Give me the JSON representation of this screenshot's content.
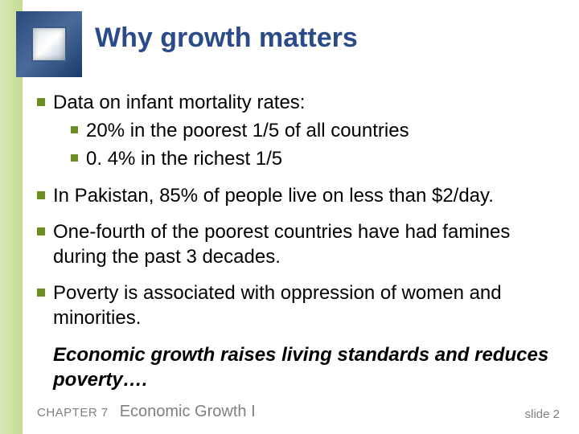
{
  "title": "Why growth matters",
  "bullets": [
    {
      "text": "Data on infant mortality rates:",
      "subs": [
        "20% in the poorest 1/5 of all countries",
        "0. 4% in the richest 1/5"
      ]
    },
    {
      "text": "In Pakistan, 85% of people live on less than $2/day."
    },
    {
      "text": "One-fourth of the poorest countries have had famines during the past 3 decades."
    },
    {
      "text": "Poverty is associated with oppression of women and minorities."
    }
  ],
  "emphasis": "Economic growth raises living standards and reduces poverty….",
  "footer": {
    "chapter_label": "CHAPTER 7",
    "chapter_title": "Economic Growth I",
    "slide": "slide 2"
  },
  "colors": {
    "title_color": "#2a4a8a",
    "bullet_color": "#6b8e23",
    "text_color": "#000000",
    "footer_color": "#808080",
    "sidebar_gradient_from": "#d9e8b8",
    "sidebar_gradient_to": "#c5db96"
  },
  "typography": {
    "title_fontsize": 34,
    "body_fontsize": 24,
    "footer_fontsize": 15
  }
}
